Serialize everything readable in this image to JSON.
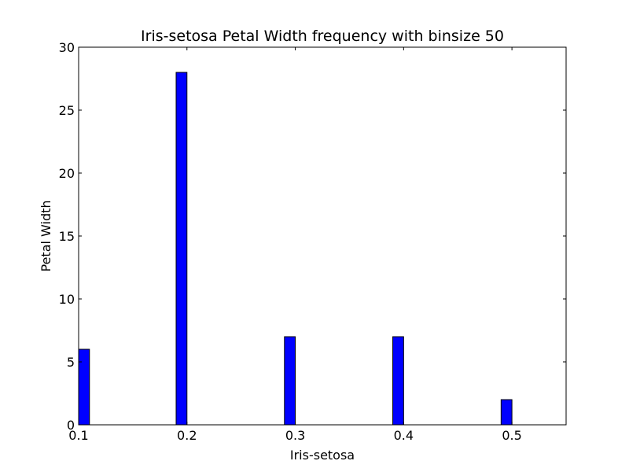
{
  "chart_data": {
    "type": "bar",
    "title": "Iris-setosa Petal Width frequency with binsize 50",
    "xlabel": "Iris-setosa",
    "ylabel": "Petal Width",
    "xlim": [
      0.1,
      0.55
    ],
    "ylim": [
      0,
      30
    ],
    "x_ticks": [
      "0.1",
      "0.2",
      "0.3",
      "0.4",
      "0.5"
    ],
    "y_ticks": [
      "0",
      "5",
      "10",
      "15",
      "20",
      "25",
      "30"
    ],
    "bar_width": 0.01,
    "x": [
      0.1,
      0.19,
      0.29,
      0.39,
      0.49
    ],
    "values": [
      6,
      28,
      7,
      7,
      2
    ],
    "bar_color": "#0000ff",
    "grid": false
  }
}
